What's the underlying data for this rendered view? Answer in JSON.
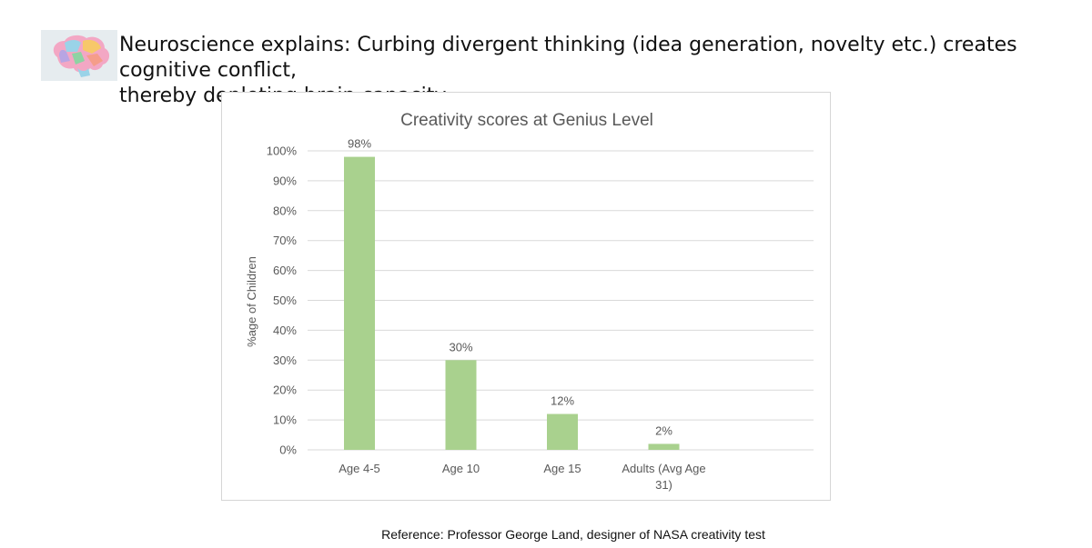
{
  "headline": {
    "line1": "Neuroscience explains: Curbing divergent thinking (idea generation, novelty etc.) creates cognitive conflict,",
    "line2": "thereby depleting brain capacity"
  },
  "logo": {
    "icon": "brain-icon"
  },
  "reference": "Reference: Professor George Land, designer of NASA creativity test",
  "colors": {
    "bar": "#a9d18e",
    "grid": "#d9d9d9",
    "axis_text": "#595959",
    "title": "#595959"
  },
  "chart_data": {
    "type": "bar",
    "title": "Creativity scores at Genius Level",
    "xlabel": "",
    "ylabel": "%age of Children",
    "categories": [
      {
        "line1": "Age 4-5",
        "line2": ""
      },
      {
        "line1": "Age 10",
        "line2": ""
      },
      {
        "line1": "Age 15",
        "line2": ""
      },
      {
        "line1": "Adults (Avg Age",
        "line2": "31)"
      }
    ],
    "values": [
      98,
      30,
      12,
      2
    ],
    "data_labels": [
      "98%",
      "30%",
      "12%",
      "2%"
    ],
    "ylim": [
      0,
      100
    ],
    "yticks": [
      "0%",
      "10%",
      "20%",
      "30%",
      "40%",
      "50%",
      "60%",
      "70%",
      "80%",
      "90%",
      "100%"
    ],
    "grid": true,
    "legend": "none"
  }
}
